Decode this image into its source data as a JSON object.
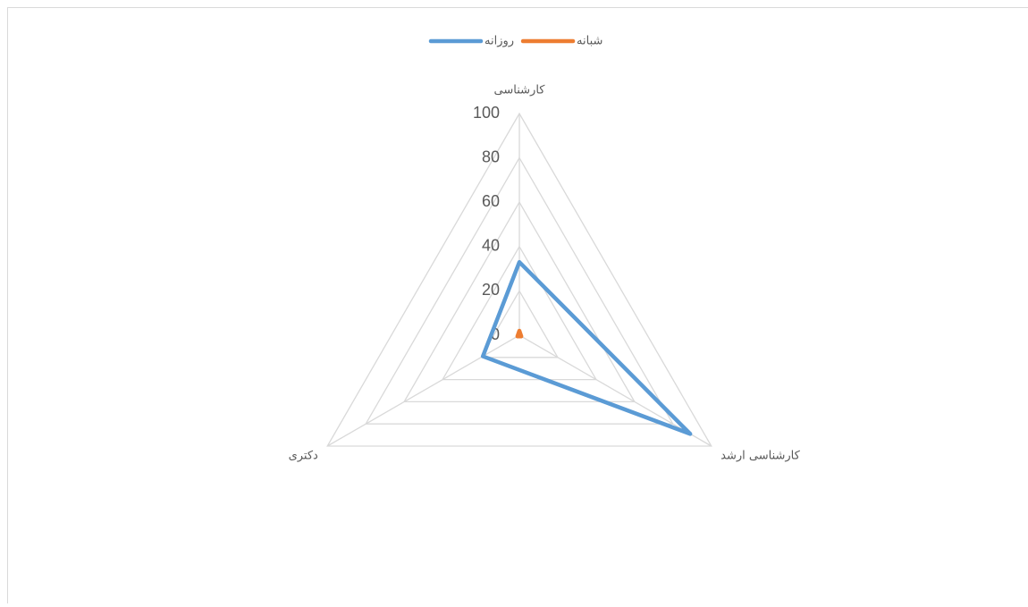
{
  "chart_data": {
    "type": "radar",
    "categories": [
      "کارشناسی",
      "کارشناسی ارشد",
      "دکتری"
    ],
    "series": [
      {
        "name": "روزانه",
        "color": "#5b9bd5",
        "values": [
          33,
          89,
          19
        ]
      },
      {
        "name": "شبانه",
        "color": "#ed7d31",
        "values": [
          2,
          1,
          1
        ]
      }
    ],
    "ylim": [
      0,
      100
    ],
    "yticks": [
      0,
      20,
      40,
      60,
      80,
      100
    ],
    "grid": true,
    "legend": "top"
  }
}
